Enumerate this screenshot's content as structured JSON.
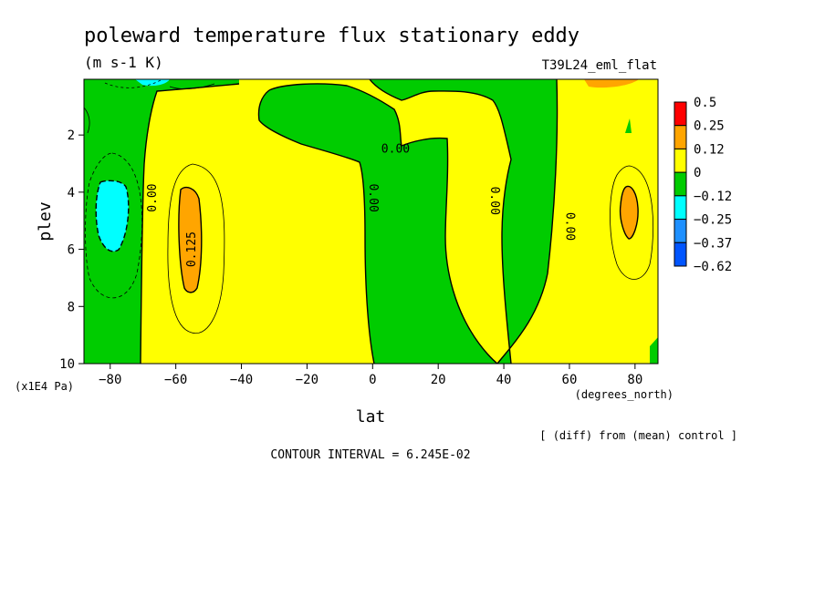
{
  "chart_data": {
    "type": "heatmap",
    "title": "poleward temperature flux stationary eddy",
    "units": "(m s-1 K)",
    "run_label": "T39L24_eml_flat",
    "xlabel": "lat",
    "x_units": "(degrees_north)",
    "ylabel": "plev",
    "y_units": "(x1E4 Pa)",
    "x_ticks": [
      "-80",
      "-60",
      "-40",
      "-20",
      "0",
      "20",
      "40",
      "60",
      "80"
    ],
    "y_ticks": [
      "2",
      "4",
      "6",
      "8",
      "10"
    ],
    "xlim": [
      -88,
      87
    ],
    "ylim": [
      10,
      0.05
    ],
    "colorbar": {
      "labels": [
        "0.5",
        "0.25",
        "0.12",
        "0",
        "−0.12",
        "−0.25",
        "−0.37",
        "−0.62"
      ],
      "colors": [
        "#ff0000",
        "#ffa500",
        "#ffff00",
        "#00cc00",
        "#00ffff",
        "#1e90ff",
        "#0055ff"
      ]
    },
    "contour_labels": [
      {
        "text": "0.00",
        "lat": -67,
        "p": 4.2,
        "rotate": -90
      },
      {
        "text": "0.125",
        "lat": -55,
        "p": 6.0,
        "rotate": -90
      },
      {
        "text": "0.00",
        "lat": 0,
        "p": 4.2,
        "rotate": 90
      },
      {
        "text": "0.00",
        "lat": 7,
        "p": 2.5,
        "rotate": 0
      },
      {
        "text": "0.00",
        "lat": 37,
        "p": 4.3,
        "rotate": 90
      },
      {
        "text": "0.00",
        "lat": 60,
        "p": 5.2,
        "rotate": 90
      }
    ],
    "contour_interval": "CONTOUR INTERVAL = 6.245E-02",
    "note": "[ (diff) from (mean) control ]",
    "grid": false
  }
}
